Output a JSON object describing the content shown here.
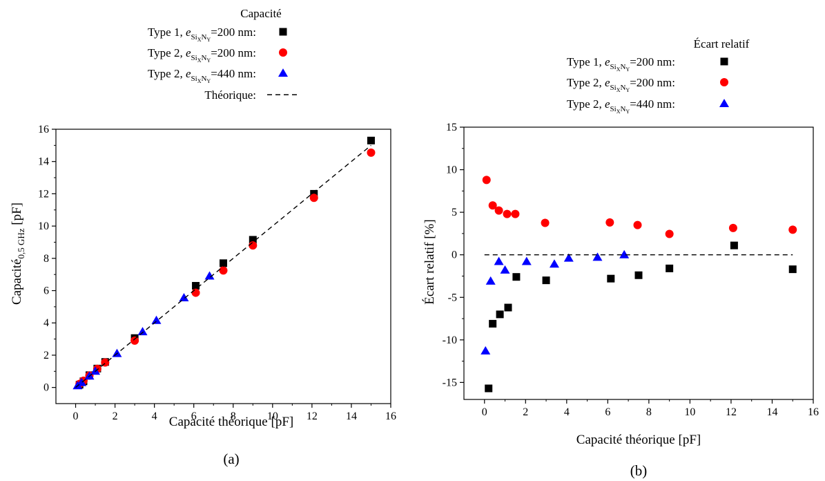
{
  "chart_data": [
    {
      "type": "scatter",
      "panel_label": "(a)",
      "legend_title": "Capacité",
      "xlabel": "Capacité théorique [pF]",
      "ylabel_main": "Capacité",
      "ylabel_sub": "0,5 GHz",
      "ylabel_unit": " [pF]",
      "xlim": [
        -1,
        16
      ],
      "ylim": [
        -1,
        16
      ],
      "xticks": [
        0,
        2,
        4,
        6,
        8,
        10,
        12,
        14,
        16
      ],
      "yticks": [
        0,
        2,
        4,
        6,
        8,
        10,
        12,
        14,
        16
      ],
      "legend": [
        {
          "label": "Type 1, ",
          "thickness": "=200 nm:"
        },
        {
          "label": "Type 2, ",
          "thickness": "=200 nm:"
        },
        {
          "label": "Type 2, ",
          "thickness": "=440 nm:"
        },
        {
          "label": "Théorique:",
          "thickness": ""
        }
      ],
      "series": [
        {
          "marker": "square",
          "color": "#000000",
          "x": [
            0.2,
            0.4,
            0.7,
            1.1,
            1.5,
            3.0,
            6.1,
            7.5,
            9.0,
            12.1,
            15.0
          ],
          "y": [
            0.17,
            0.38,
            0.76,
            1.17,
            1.58,
            3.06,
            6.3,
            7.7,
            9.15,
            12.0,
            15.3
          ]
        },
        {
          "marker": "circle",
          "color": "#ff0000",
          "x": [
            0.2,
            0.4,
            0.7,
            1.1,
            1.5,
            3.0,
            6.1,
            7.5,
            9.0,
            12.1,
            15.0
          ],
          "y": [
            0.22,
            0.42,
            0.74,
            1.15,
            1.55,
            2.9,
            5.87,
            7.25,
            8.8,
            11.75,
            14.55
          ]
        },
        {
          "marker": "triangle",
          "color": "#0000ff",
          "x": [
            0.1,
            0.3,
            0.7,
            1.0,
            2.1,
            3.4,
            4.1,
            5.5,
            6.8
          ],
          "y": [
            0.1,
            0.3,
            0.7,
            1.0,
            2.1,
            3.45,
            4.15,
            5.55,
            6.9
          ]
        },
        {
          "type": "line",
          "style": "dashed",
          "color": "#000000",
          "x": [
            0,
            15
          ],
          "y": [
            0,
            15
          ]
        }
      ]
    },
    {
      "type": "scatter",
      "panel_label": "(b)",
      "legend_title": "Écart relatif",
      "xlabel": "Capacité théorique [pF]",
      "ylabel": "Écart relatif [%]",
      "xlim": [
        -1,
        16
      ],
      "ylim": [
        -17,
        15
      ],
      "xticks": [
        0,
        2,
        4,
        6,
        8,
        10,
        12,
        14,
        16
      ],
      "yticks": [
        -15,
        -10,
        -5,
        0,
        5,
        10,
        15
      ],
      "legend": [
        {
          "label": "Type 1, ",
          "thickness": "=200 nm:"
        },
        {
          "label": "Type 2, ",
          "thickness": "=200 nm:"
        },
        {
          "label": "Type 2, ",
          "thickness": "=440 nm:"
        }
      ],
      "series": [
        {
          "marker": "square",
          "color": "#000000",
          "x": [
            0.2,
            0.4,
            0.75,
            1.15,
            1.55,
            3.0,
            6.15,
            7.5,
            9.0,
            12.15,
            15.0
          ],
          "y": [
            -15.7,
            -8.1,
            -7.0,
            -6.2,
            -2.6,
            -3.0,
            -2.8,
            -2.4,
            -1.6,
            1.1,
            -1.7
          ]
        },
        {
          "marker": "circle",
          "color": "#ff0000",
          "x": [
            0.1,
            0.4,
            0.7,
            1.1,
            1.5,
            2.95,
            6.1,
            7.45,
            9.0,
            12.1,
            15.0
          ],
          "y": [
            8.8,
            5.8,
            5.2,
            4.8,
            4.8,
            3.75,
            3.8,
            3.5,
            2.45,
            3.15,
            2.95
          ]
        },
        {
          "marker": "triangle",
          "color": "#0000ff",
          "x": [
            0.05,
            0.3,
            0.7,
            1.0,
            2.05,
            3.4,
            4.1,
            5.5,
            6.8
          ],
          "y": [
            -11.3,
            -3.1,
            -0.8,
            -1.8,
            -0.8,
            -1.1,
            -0.4,
            -0.3,
            0.0
          ]
        },
        {
          "type": "line",
          "style": "dashed",
          "color": "#000000",
          "x": [
            0,
            15
          ],
          "y": [
            0,
            0
          ]
        }
      ]
    }
  ]
}
